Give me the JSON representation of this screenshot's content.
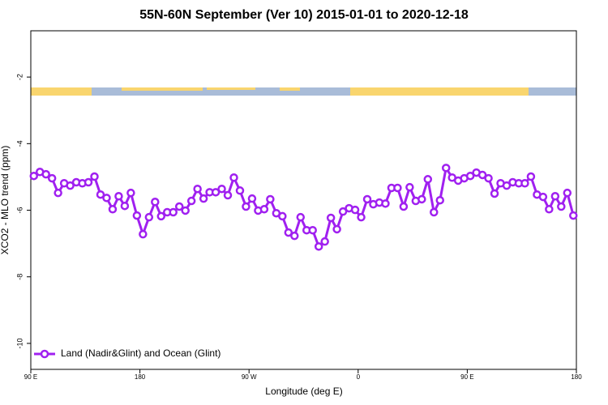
{
  "chart_data": {
    "type": "line",
    "title": "55N-60N September (Ver 10)   2015-01-01 to 2020-12-18",
    "x_label": "Longitude (deg E)",
    "y_label": "XCO2 - MLO trend (ppm)",
    "x": [
      92.5,
      97.5,
      102.5,
      107.5,
      112.5,
      117.5,
      122.5,
      127.5,
      132.5,
      137.5,
      142.5,
      147.5,
      152.5,
      157.5,
      162.5,
      167.5,
      172.5,
      177.5,
      182.5,
      187.5,
      192.5,
      197.5,
      202.5,
      207.5,
      212.5,
      217.5,
      222.5,
      227.5,
      232.5,
      237.5,
      242.5,
      247.5,
      252.5,
      257.5,
      262.5,
      267.5,
      272.5,
      277.5,
      282.5,
      287.5,
      292.5,
      297.5,
      302.5,
      307.5,
      312.5,
      317.5,
      322.5,
      327.5,
      332.5,
      337.5,
      342.5,
      347.5,
      352.5,
      357.5,
      362.5,
      367.5,
      372.5,
      377.5,
      382.5,
      387.5,
      392.5,
      397.5,
      402.5,
      407.5,
      412.5,
      417.5,
      422.5,
      427.5,
      432.5,
      437.5,
      442.5,
      447.5,
      452.5,
      457.5,
      462.5,
      467.5,
      472.5,
      477.5,
      482.5,
      487.5,
      492.5,
      497.5,
      502.5,
      507.5,
      512.5,
      517.5,
      522.5,
      527.5,
      532.5,
      537.5
    ],
    "series": [
      {
        "name": "Land (Nadir&Glint) and Ocean (Glint)",
        "color": "#a020f0",
        "values": [
          -4.97,
          -4.85,
          -4.92,
          -5.04,
          -5.48,
          -5.19,
          -5.26,
          -5.16,
          -5.19,
          -5.16,
          -4.99,
          -5.53,
          -5.63,
          -5.97,
          -5.58,
          -5.87,
          -5.48,
          -6.16,
          -6.72,
          -6.21,
          -5.75,
          -6.18,
          -6.06,
          -6.06,
          -5.89,
          -6.01,
          -5.72,
          -5.36,
          -5.65,
          -5.46,
          -5.46,
          -5.36,
          -5.55,
          -5.02,
          -5.41,
          -5.89,
          -5.65,
          -6.01,
          -5.97,
          -5.67,
          -6.09,
          -6.18,
          -6.67,
          -6.77,
          -6.21,
          -6.6,
          -6.6,
          -7.09,
          -6.94,
          -6.23,
          -6.57,
          -6.04,
          -5.94,
          -5.99,
          -6.21,
          -5.67,
          -5.82,
          -5.77,
          -5.8,
          -5.33,
          -5.33,
          -5.89,
          -5.31,
          -5.72,
          -5.67,
          -5.07,
          -6.06,
          -5.7,
          -4.73,
          -5.02,
          -5.11,
          -5.04,
          -4.97,
          -4.87,
          -4.94,
          -5.04,
          -5.5,
          -5.19,
          -5.26,
          -5.16,
          -5.19,
          -5.19,
          -4.99,
          -5.53,
          -5.6,
          -5.97,
          -5.58,
          -5.89,
          -5.48,
          -6.16
        ]
      }
    ],
    "xlim": [
      90,
      540
    ],
    "xticks": [
      {
        "value": 90,
        "label": "90 E"
      },
      180,
      {
        "value": 270,
        "label": "90 W"
      },
      {
        "value": 360,
        "label": "0"
      },
      {
        "value": 450,
        "label": "90 E"
      },
      {
        "value": 540,
        "label": "180"
      }
    ],
    "ylim": [
      -10.78,
      -0.61
    ],
    "yticks": [
      -2,
      -4,
      -6,
      -8,
      -10
    ],
    "legend": "bottom-left"
  }
}
